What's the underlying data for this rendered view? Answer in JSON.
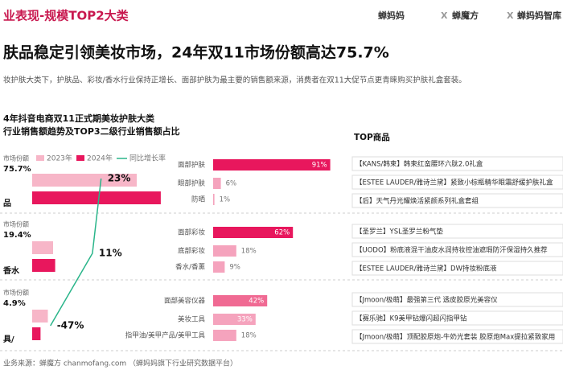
{
  "header": {
    "title": "业表现-规模TOP2大类",
    "logos": [
      "蝉妈妈",
      "X",
      "蝉魔方",
      "X",
      "蝉妈妈智库"
    ]
  },
  "headline": "肤品稳定引领美妆市场，24年双11市场份额高达75.7%",
  "subtitle": "妆护肤大类下，护肤品、彩妆/香水行业保持正增长、面部护肤为最主要的销售额来源，消费者在双11大促节点更青睐购买护肤礼盒套装。",
  "section": {
    "line1": "4年抖音电商双11正式期美妆护肤大类",
    "line2": "行业销售额趋势及TOP3二级行业销售额占比"
  },
  "legend": [
    "2023年",
    "2024年",
    "同比增长率"
  ],
  "top_title": "TOP商品",
  "categories": [
    {
      "share_label": "市场份额",
      "share": "75.7%",
      "name": "品",
      "sales_2023": 100,
      "sales_2024": 123,
      "growth": 23,
      "growth_label": "23%",
      "subs": [
        {
          "name": "面部护肤",
          "value": 91,
          "label": "91%"
        },
        {
          "name": "眼部护肤",
          "value": 6,
          "label": "6%"
        },
        {
          "name": "防晒",
          "value": 1,
          "label": "1%"
        }
      ],
      "products": [
        "【KANS/韩束】韩束红蛮腰环六肽2.0礼盒",
        "【ESTEE LAUDER/雅诗兰黛】紧致小棕瓶精华眼霜舒缓护肤礼盒",
        "【后】天气丹光耀焕活紧颜系列礼盒套组"
      ]
    },
    {
      "share_label": "市场份额",
      "share": "19.4%",
      "name": "香水",
      "sales_2023": 20,
      "sales_2024": 22,
      "growth": 11,
      "growth_label": "11%",
      "subs": [
        {
          "name": "面部彩妆",
          "value": 62,
          "label": "62%"
        },
        {
          "name": "底部彩妆",
          "value": 18,
          "label": "18%"
        },
        {
          "name": "香水/香薰",
          "value": 9,
          "label": "9%"
        }
      ],
      "products": [
        "【圣罗兰】YSL圣罗兰粉气垫",
        "【UODO】粉底液混干油皮水润持妆控油遮瑕防汗保湿持久推荐",
        "【ESTEE LAUDER/雅诗兰黛】DW持妆粉底液"
      ]
    },
    {
      "share_label": "市场份额",
      "share": "4.9%",
      "name": "具/",
      "sales_2023": 15,
      "sales_2024": 8,
      "growth": -47,
      "growth_label": "-47%",
      "subs": [
        {
          "name": "面部美容仪器",
          "value": 42,
          "label": "42%"
        },
        {
          "name": "美妆工具",
          "value": 33,
          "label": "33%"
        },
        {
          "name": "指甲油/美甲产品/美甲工具",
          "value": 18,
          "label": "18%"
        }
      ],
      "products": [
        "【Jmoon/极萌】最强第三代 透皮胶原光美容仪",
        "【赛乐驰】K9美甲钻爆闪超闪指甲钻",
        "【Jmoon/极萌】顶配胶原炮-牛奶光套装 胶原炮Max提拉紧致家用"
      ]
    }
  ],
  "footer": "业务来源：蝉魔方 chanmofang.com （蝉妈妈旗下行业研究数据平台）"
}
